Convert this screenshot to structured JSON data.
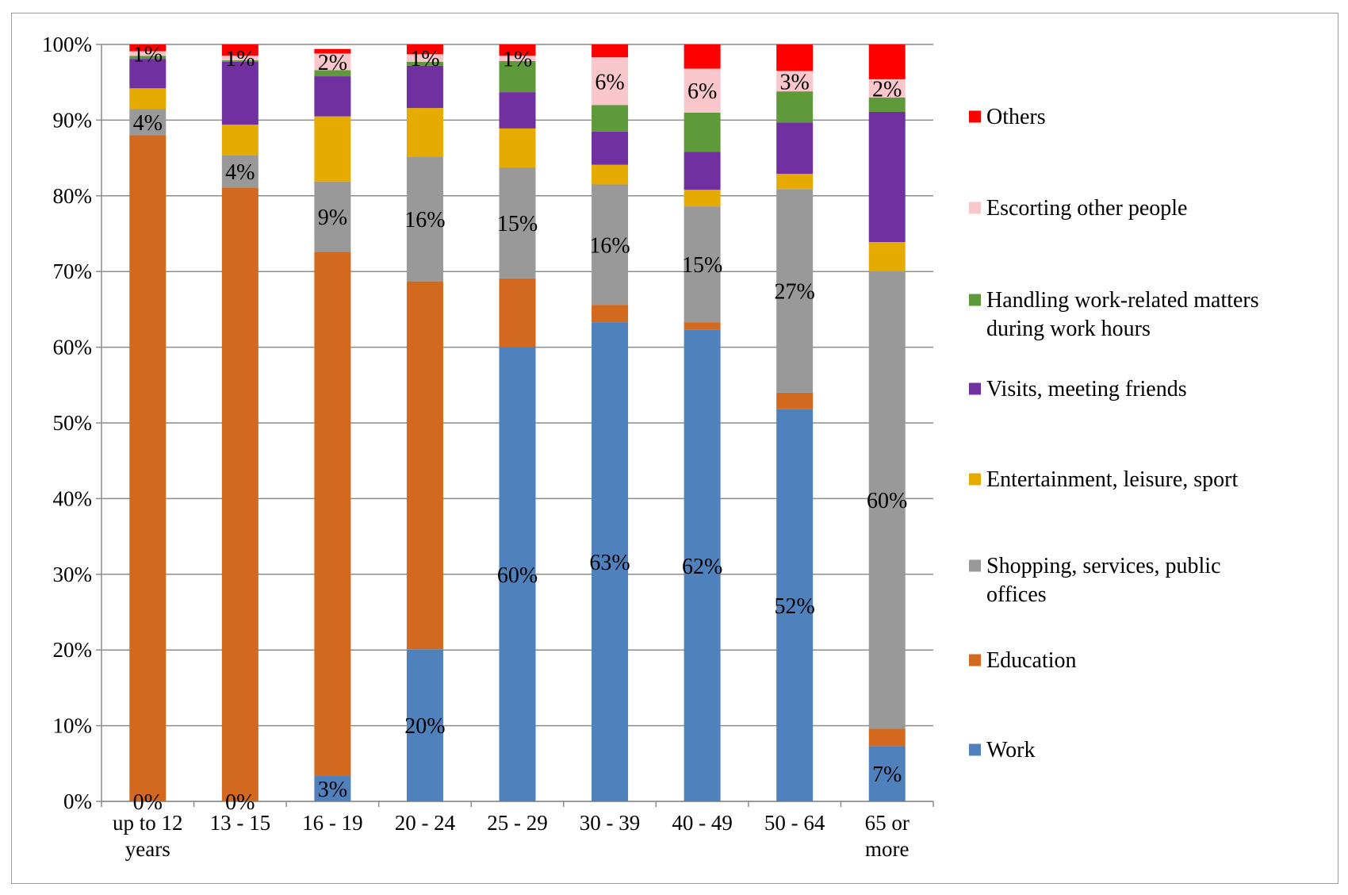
{
  "chart_data": {
    "type": "bar",
    "stacked": true,
    "percent": true,
    "categories": [
      [
        "up to 12",
        "years"
      ],
      [
        "13 - 15"
      ],
      [
        "16 - 19"
      ],
      [
        "20 - 24"
      ],
      [
        "25 - 29"
      ],
      [
        "30 - 39"
      ],
      [
        "40 - 49"
      ],
      [
        "50 - 64"
      ],
      [
        "65 or",
        "more"
      ]
    ],
    "ylim": [
      0,
      100
    ],
    "yticks": [
      "0%",
      "10%",
      "20%",
      "30%",
      "40%",
      "50%",
      "60%",
      "70%",
      "80%",
      "90%",
      "100%"
    ],
    "grid": true,
    "legend_position": "right",
    "series": [
      {
        "name": "Work",
        "color": "#4F81BD",
        "values": [
          0,
          0,
          3.4,
          20.1,
          60.0,
          63.3,
          62.3,
          51.8,
          7.3
        ],
        "labels": [
          "0%",
          "0%",
          "3%",
          "20%",
          "60%",
          "63%",
          "62%",
          "52%",
          "7%"
        ]
      },
      {
        "name": "Education",
        "color": "#D2691E",
        "values": [
          88.0,
          81.1,
          69.2,
          48.6,
          9.1,
          2.3,
          1.0,
          2.2,
          2.3
        ],
        "labels": null
      },
      {
        "name": "Shopping, services, public offices",
        "color": "#999999",
        "values": [
          3.5,
          4.3,
          9.3,
          16.5,
          14.6,
          15.9,
          15.3,
          26.9,
          60.5
        ],
        "labels": [
          "4%",
          "4%",
          "9%",
          "16%",
          "15%",
          "16%",
          "15%",
          "27%",
          "60%"
        ]
      },
      {
        "name": "Entertainment, leisure, sport",
        "color": "#E5AB00",
        "values": [
          2.7,
          4.0,
          8.6,
          6.4,
          5.2,
          2.6,
          2.2,
          2.0,
          3.8
        ]
      },
      {
        "name": "Visits, meeting friends",
        "color": "#7030A0",
        "values": [
          3.9,
          8.3,
          5.3,
          5.6,
          4.8,
          4.4,
          5.0,
          6.8,
          17.2
        ]
      },
      {
        "name": "Handling work-related matters during work hours",
        "color": "#5F9A3A",
        "values": [
          0.4,
          0.2,
          0.8,
          0.5,
          4.1,
          3.5,
          5.2,
          4.1,
          1.9
        ]
      },
      {
        "name": "Escorting other people",
        "color": "#F9C6CC",
        "values": [
          0.6,
          0.6,
          2.2,
          1.0,
          0.7,
          6.3,
          5.8,
          2.7,
          2.4
        ],
        "labels": [
          "1%",
          "1%",
          "2%",
          "1%",
          "1%",
          "6%",
          "6%",
          "3%",
          "2%"
        ]
      },
      {
        "name": "Others",
        "color": "#FF0000",
        "values": [
          0.9,
          1.5,
          0.6,
          1.3,
          1.5,
          1.7,
          3.2,
          3.5,
          4.6
        ]
      }
    ],
    "legend_lines": [
      {
        "series": 7,
        "lines": [
          "Others"
        ]
      },
      {
        "series": 6,
        "lines": [
          "Escorting other people"
        ]
      },
      {
        "series": 5,
        "lines": [
          "Handling work-related matters",
          "during work hours"
        ]
      },
      {
        "series": 4,
        "lines": [
          "Visits, meeting friends"
        ]
      },
      {
        "series": 3,
        "lines": [
          "Entertainment, leisure, sport"
        ]
      },
      {
        "series": 2,
        "lines": [
          "Shopping, services, public",
          "offices"
        ]
      },
      {
        "series": 1,
        "lines": [
          "Education"
        ]
      },
      {
        "series": 0,
        "lines": [
          "Work"
        ]
      }
    ]
  }
}
